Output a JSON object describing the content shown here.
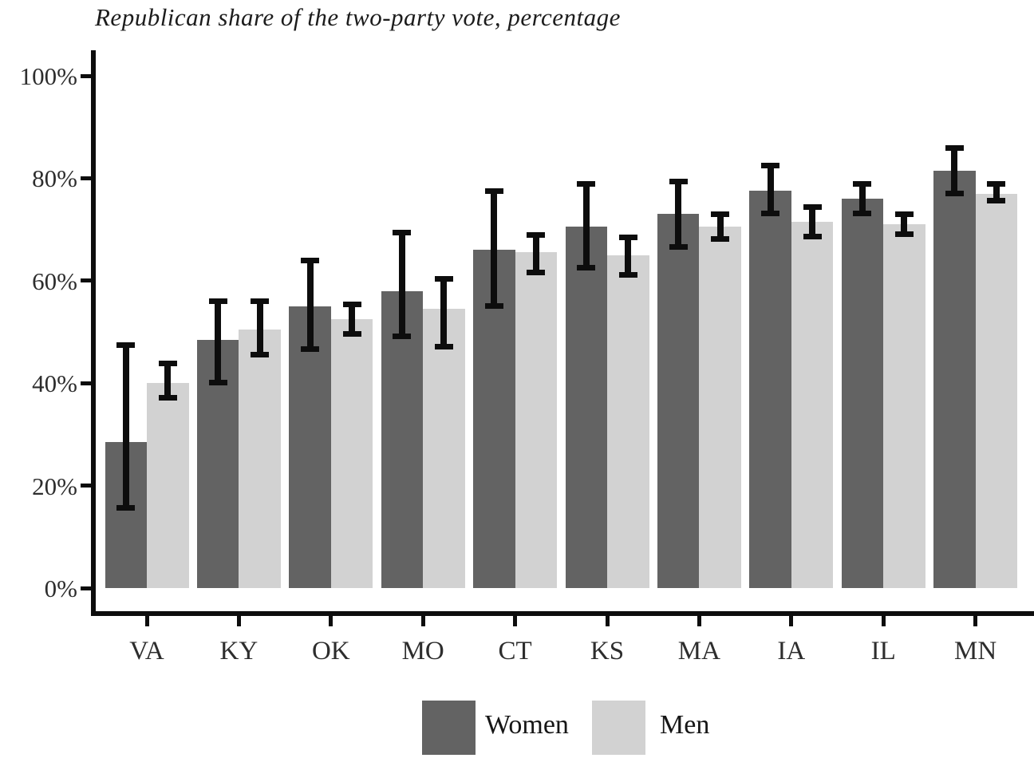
{
  "chart_data": {
    "type": "bar",
    "title": "Republican share of the two-party vote, percentage",
    "categories": [
      "VA",
      "KY",
      "OK",
      "MO",
      "CT",
      "KS",
      "MA",
      "IA",
      "IL",
      "MN"
    ],
    "series": [
      {
        "name": "Women",
        "color": "#636363",
        "values": [
          28.5,
          48.5,
          55.0,
          58.0,
          66.0,
          70.5,
          73.0,
          77.5,
          76.0,
          81.5
        ],
        "error_low": [
          15.5,
          40.0,
          46.5,
          49.0,
          55.0,
          62.5,
          66.5,
          73.0,
          73.0,
          77.0
        ],
        "error_high": [
          47.5,
          56.0,
          64.0,
          69.5,
          77.5,
          79.0,
          79.5,
          82.5,
          79.0,
          86.0
        ]
      },
      {
        "name": "Men",
        "color": "#d2d2d2",
        "values": [
          40.0,
          50.5,
          52.5,
          54.5,
          65.5,
          65.0,
          70.5,
          71.5,
          71.0,
          77.0
        ],
        "error_low": [
          37.0,
          45.5,
          49.5,
          47.0,
          61.5,
          61.0,
          68.0,
          68.5,
          69.0,
          75.5
        ],
        "error_high": [
          44.0,
          56.0,
          55.5,
          60.5,
          69.0,
          68.5,
          73.0,
          74.5,
          73.0,
          79.0
        ]
      }
    ],
    "y_ticks": [
      "0%",
      "20%",
      "40%",
      "60%",
      "80%",
      "100%"
    ],
    "ylim": [
      0,
      105
    ],
    "ylabel": "",
    "xlabel": "",
    "grid": false,
    "error_bars": true,
    "error_bar_color": "#0d0d0d",
    "legend_position": "bottom",
    "axis_color": "#0d0d0d"
  }
}
